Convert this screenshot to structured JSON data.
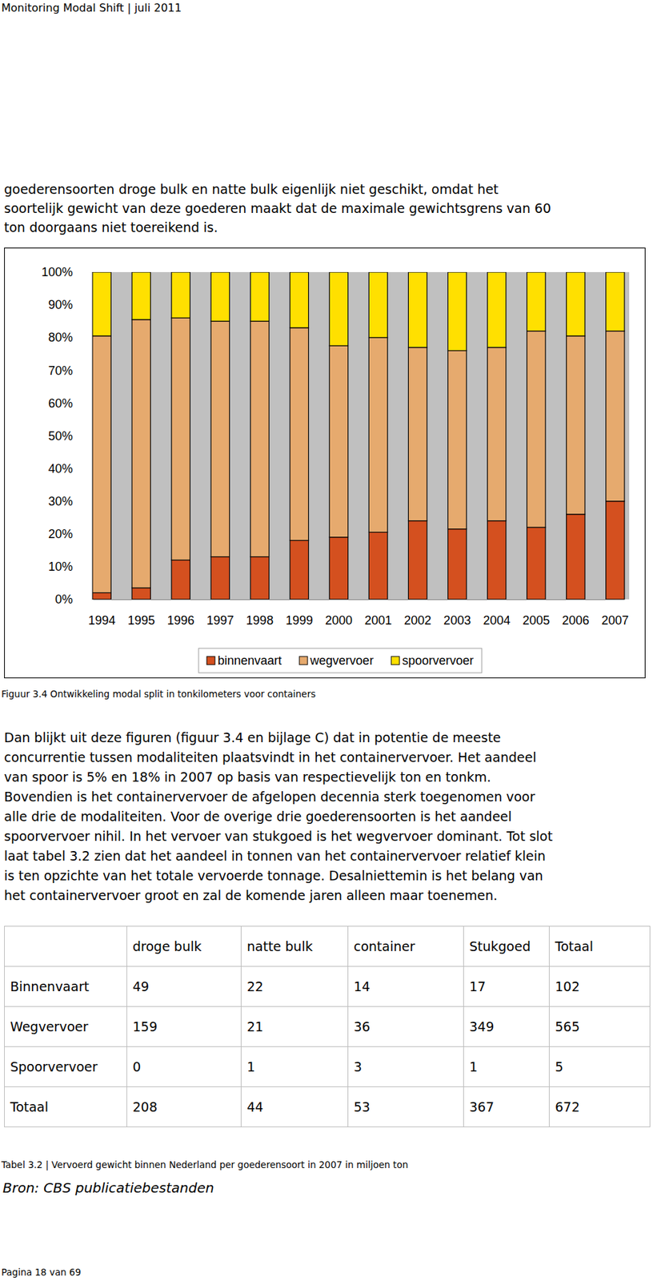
{
  "header": {
    "title": "Monitoring Modal Shift | juli 2011"
  },
  "paragraph_top": {
    "lines": [
      "goederensoorten droge bulk en natte bulk eigenlijk niet geschikt, omdat het",
      "soortelijk gewicht van deze goederen maakt dat de maximale gewichtsgrens van 60",
      "ton doorgaans niet toereikend is."
    ]
  },
  "chart_data": {
    "type": "bar",
    "stacked": true,
    "categories": [
      "1994",
      "1995",
      "1996",
      "1997",
      "1998",
      "1999",
      "2000",
      "2001",
      "2002",
      "2003",
      "2004",
      "2005",
      "2006",
      "2007"
    ],
    "series": [
      {
        "name": "binnenvaart",
        "color": "#d4501f",
        "values": [
          2,
          3.5,
          12,
          13,
          13,
          18,
          19,
          20.5,
          24,
          21.5,
          24,
          22,
          26,
          30
        ]
      },
      {
        "name": "wegvervoer",
        "color": "#e6aa6e",
        "values": [
          78.5,
          82,
          74,
          72,
          72,
          65,
          58.5,
          59.5,
          53,
          54.5,
          53,
          60,
          54.5,
          52
        ]
      },
      {
        "name": "spoorvervoer",
        "color": "#ffe000",
        "values": [
          19.5,
          14.5,
          14,
          15,
          15,
          17,
          22.5,
          20,
          23,
          24,
          23,
          18,
          19.5,
          18
        ]
      }
    ],
    "ylim": [
      0,
      100
    ],
    "yticks": [
      {
        "value": 0,
        "label": "0%"
      },
      {
        "value": 10,
        "label": "10%"
      },
      {
        "value": 20,
        "label": "20%"
      },
      {
        "value": 30,
        "label": "30%"
      },
      {
        "value": 40,
        "label": "40%"
      },
      {
        "value": 50,
        "label": "50%"
      },
      {
        "value": 60,
        "label": "60%"
      },
      {
        "value": 70,
        "label": "70%"
      },
      {
        "value": 80,
        "label": "80%"
      },
      {
        "value": 90,
        "label": "90%"
      },
      {
        "value": 100,
        "label": "100%"
      }
    ],
    "grid": false,
    "legend": "bottom"
  },
  "figure_caption": "Figuur 3.4 Ontwikkeling modal split in tonkilometers voor containers",
  "paragraph_body": {
    "lines": [
      "Dan blijkt uit deze figuren (figuur 3.4 en bijlage C) dat in potentie de meeste",
      "concurrentie tussen modaliteiten plaatsvindt in het containervervoer. Het aandeel",
      "van spoor is 5% en 18% in 2007 op basis van respectievelijk ton en tonkm.",
      "Bovendien is het containervervoer de afgelopen decennia sterk toegenomen voor",
      "alle drie de modaliteiten. Voor de overige drie goederensoorten is het aandeel",
      "spoorvervoer nihil. In het vervoer van stukgoed is het wegvervoer dominant. Tot slot",
      "laat tabel 3.2 zien dat het aandeel in tonnen van het containervervoer relatief klein",
      "is ten opzichte van het totale vervoerde tonnage. Desalniettemin is het belang van",
      "het containervervoer groot en zal de komende jaren alleen maar toenemen."
    ]
  },
  "table": {
    "columns": [
      "droge bulk",
      "natte bulk",
      "container",
      "Stukgoed",
      "Totaal"
    ],
    "rows": [
      [
        "Binnenvaart",
        49,
        22,
        14,
        17,
        102
      ],
      [
        "Wegvervoer",
        159,
        21,
        36,
        349,
        565
      ],
      [
        "Spoorvervoer",
        0,
        1,
        3,
        1,
        5
      ],
      [
        "Totaal",
        208,
        44,
        53,
        367,
        672
      ]
    ]
  },
  "table_caption": "Tabel 3.2 | Vervoerd gewicht binnen Nederland per goederensoort in 2007 in miljoen ton",
  "source": "Bron: CBS publicatiebestanden",
  "footer": "Pagina 18 van 69"
}
